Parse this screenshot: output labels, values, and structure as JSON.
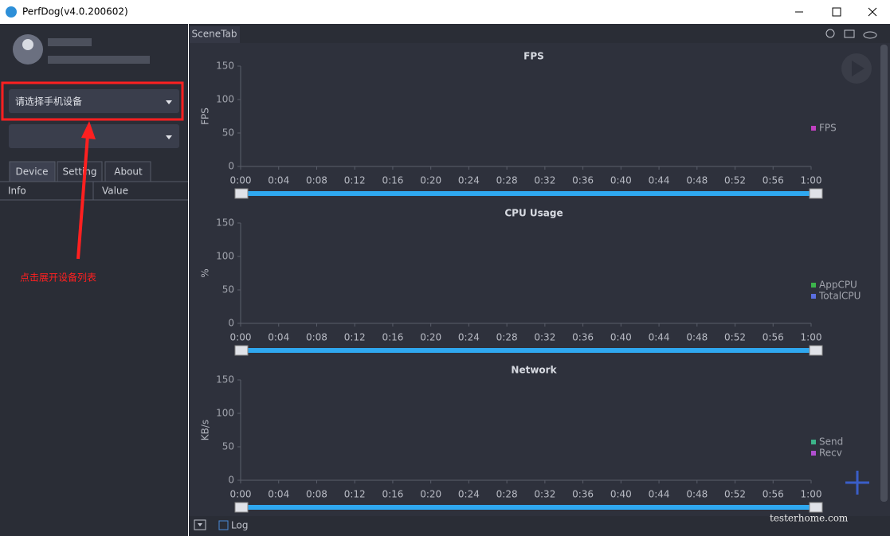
{
  "window": {
    "title": "PerfDog(v4.0.200602)"
  },
  "sidebar": {
    "device_select": "请选择手机设备",
    "tabs": [
      "Device",
      "Setting",
      "About"
    ],
    "columns": [
      "Info",
      "Value"
    ]
  },
  "scene_tab": "SceneTab",
  "charts": [
    {
      "title": "FPS",
      "ylabel": "FPS",
      "ylim": [
        0,
        150
      ],
      "yticks": [
        0,
        50,
        100,
        150
      ],
      "xlim": [
        0,
        60
      ],
      "xticks": [
        {
          "value": 0,
          "label": "0:00"
        },
        {
          "value": 4,
          "label": "0:04"
        },
        {
          "value": 8,
          "label": "0:08"
        },
        {
          "value": 12,
          "label": "0:12"
        },
        {
          "value": 16,
          "label": "0:16"
        },
        {
          "value": 20,
          "label": "0:20"
        },
        {
          "value": 24,
          "label": "0:24"
        },
        {
          "value": 28,
          "label": "0:28"
        },
        {
          "value": 32,
          "label": "0:32"
        },
        {
          "value": 36,
          "label": "0:36"
        },
        {
          "value": 40,
          "label": "0:40"
        },
        {
          "value": 44,
          "label": "0:44"
        },
        {
          "value": 48,
          "label": "0:48"
        },
        {
          "value": 52,
          "label": "0:52"
        },
        {
          "value": 56,
          "label": "0:56"
        },
        {
          "value": 60,
          "label": "1:00"
        }
      ],
      "legend": [
        {
          "name": "FPS",
          "color": "#c040c0"
        }
      ]
    },
    {
      "title": "CPU Usage",
      "ylabel": "%",
      "ylim": [
        0,
        150
      ],
      "yticks": [
        0,
        50,
        100,
        150
      ],
      "xlim": [
        0,
        60
      ],
      "xticks": [
        {
          "value": 0,
          "label": "0:00"
        },
        {
          "value": 4,
          "label": "0:04"
        },
        {
          "value": 8,
          "label": "0:08"
        },
        {
          "value": 12,
          "label": "0:12"
        },
        {
          "value": 16,
          "label": "0:16"
        },
        {
          "value": 20,
          "label": "0:20"
        },
        {
          "value": 24,
          "label": "0:24"
        },
        {
          "value": 28,
          "label": "0:28"
        },
        {
          "value": 32,
          "label": "0:32"
        },
        {
          "value": 36,
          "label": "0:36"
        },
        {
          "value": 40,
          "label": "0:40"
        },
        {
          "value": 44,
          "label": "0:44"
        },
        {
          "value": 48,
          "label": "0:48"
        },
        {
          "value": 52,
          "label": "0:52"
        },
        {
          "value": 56,
          "label": "0:56"
        },
        {
          "value": 60,
          "label": "1:00"
        }
      ],
      "legend": [
        {
          "name": "AppCPU",
          "color": "#3cb44b"
        },
        {
          "name": "TotalCPU",
          "color": "#5a6ee0"
        }
      ]
    },
    {
      "title": "Network",
      "ylabel": "KB/s",
      "ylim": [
        0,
        150
      ],
      "yticks": [
        0,
        50,
        100,
        150
      ],
      "xlim": [
        0,
        60
      ],
      "xticks": [
        {
          "value": 0,
          "label": "0:00"
        },
        {
          "value": 4,
          "label": "0:04"
        },
        {
          "value": 8,
          "label": "0:08"
        },
        {
          "value": 12,
          "label": "0:12"
        },
        {
          "value": 16,
          "label": "0:16"
        },
        {
          "value": 20,
          "label": "0:20"
        },
        {
          "value": 24,
          "label": "0:24"
        },
        {
          "value": 28,
          "label": "0:28"
        },
        {
          "value": 32,
          "label": "0:32"
        },
        {
          "value": 36,
          "label": "0:36"
        },
        {
          "value": 40,
          "label": "0:40"
        },
        {
          "value": 44,
          "label": "0:44"
        },
        {
          "value": 48,
          "label": "0:48"
        },
        {
          "value": 52,
          "label": "0:52"
        },
        {
          "value": 56,
          "label": "0:56"
        },
        {
          "value": 60,
          "label": "1:00"
        }
      ],
      "legend": [
        {
          "name": "Send",
          "color": "#3cb489"
        },
        {
          "name": "Recv",
          "color": "#b04fd0"
        }
      ]
    }
  ],
  "footer": {
    "log": "Log"
  },
  "annotation": "点击展开设备列表",
  "watermark": "testerhome.com"
}
